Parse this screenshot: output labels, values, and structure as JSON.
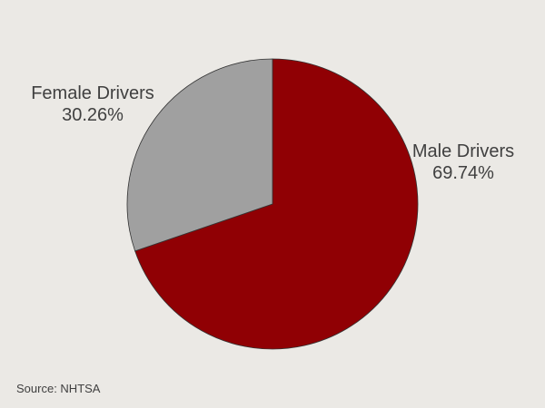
{
  "chart_data": {
    "type": "pie",
    "categories": [
      "Male Drivers",
      "Female Drivers"
    ],
    "values": [
      69.74,
      30.26
    ],
    "value_labels": [
      "69.74%",
      "30.26%"
    ],
    "colors": [
      "#900004",
      "#a0a0a0"
    ],
    "background": "#ebe9e5",
    "source": "Source: NHTSA"
  }
}
